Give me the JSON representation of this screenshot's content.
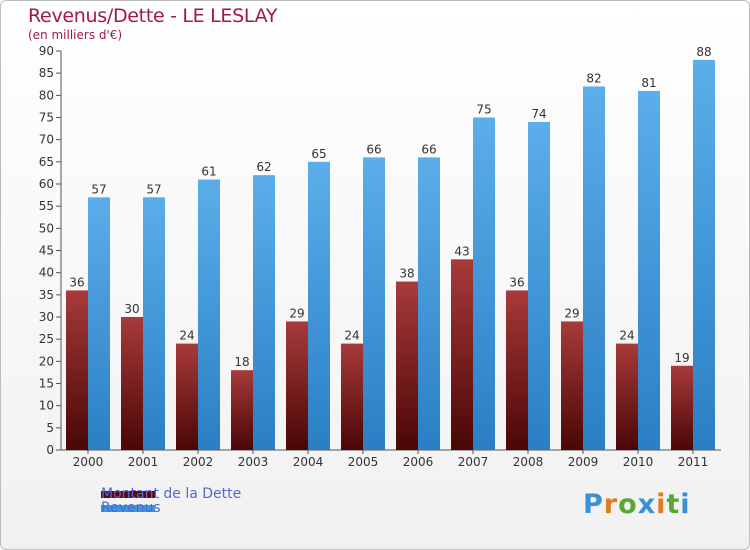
{
  "chart_data": {
    "type": "bar",
    "title": "Revenus/Dette - LE LESLAY",
    "subtitle": "(en milliers d'€)",
    "categories": [
      "2000",
      "2001",
      "2002",
      "2003",
      "2004",
      "2005",
      "2006",
      "2007",
      "2008",
      "2009",
      "2010",
      "2011"
    ],
    "series": [
      {
        "name": "Montant de la Dette",
        "values": [
          36,
          30,
          24,
          18,
          29,
          24,
          38,
          43,
          36,
          29,
          24,
          19
        ],
        "color": "#8b1b1b"
      },
      {
        "name": "Revenus",
        "values": [
          57,
          57,
          61,
          62,
          65,
          66,
          66,
          75,
          74,
          82,
          81,
          88
        ],
        "color": "#3d97dd"
      }
    ],
    "ylim": [
      0,
      90
    ],
    "yticks": [
      0,
      5,
      10,
      15,
      20,
      25,
      30,
      35,
      40,
      45,
      50,
      55,
      60,
      65,
      70,
      75,
      80,
      85,
      90
    ],
    "grid": false,
    "legend_position": "bottom-left"
  },
  "logo": {
    "text": "Proxiti"
  }
}
